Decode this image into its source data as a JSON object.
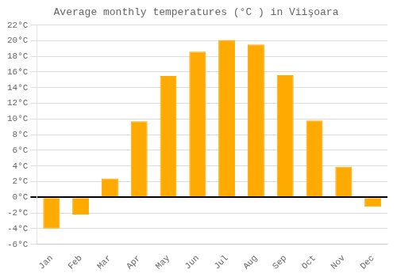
{
  "chart_data": {
    "type": "bar",
    "title": "Average monthly temperatures (°C ) in Viişoara",
    "categories": [
      "Jan",
      "Feb",
      "Mar",
      "Apr",
      "May",
      "Jun",
      "Jul",
      "Aug",
      "Sep",
      "Oct",
      "Nov",
      "Dec"
    ],
    "values": [
      -4.0,
      -2.2,
      2.4,
      9.7,
      15.5,
      18.6,
      20.1,
      19.5,
      15.6,
      9.8,
      3.9,
      -1.2
    ],
    "color": "#FFAA00",
    "ylim": [
      -6,
      22
    ],
    "yticks": [
      {
        "value": -6,
        "label": "-6°C"
      },
      {
        "value": -4,
        "label": "-4°C"
      },
      {
        "value": -2,
        "label": "-2°C"
      },
      {
        "value": 0,
        "label": "0°C"
      },
      {
        "value": 2,
        "label": "2°C"
      },
      {
        "value": 4,
        "label": "4°C"
      },
      {
        "value": 6,
        "label": "6°C"
      },
      {
        "value": 8,
        "label": "8°C"
      },
      {
        "value": 10,
        "label": "10°C"
      },
      {
        "value": 12,
        "label": "12°C"
      },
      {
        "value": 14,
        "label": "14°C"
      },
      {
        "value": 16,
        "label": "16°C"
      },
      {
        "value": 18,
        "label": "18°C"
      },
      {
        "value": 20,
        "label": "20°C"
      },
      {
        "value": 22,
        "label": "22°C"
      }
    ],
    "grid": true
  }
}
